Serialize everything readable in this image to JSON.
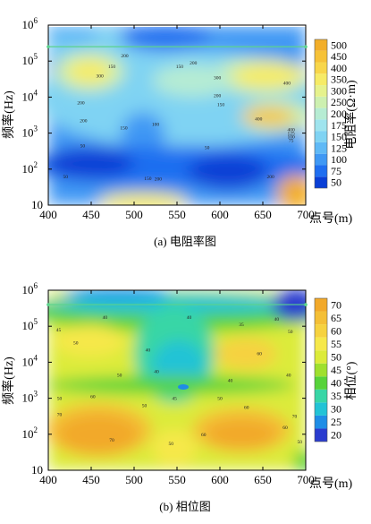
{
  "chart_data": [
    {
      "type": "heatmap",
      "caption": "(a) 电阻率图",
      "xlabel": "点号(m)",
      "ylabel": "频率(Hz)",
      "x_ticks": [
        "400",
        "450",
        "500",
        "550",
        "600",
        "650",
        "700"
      ],
      "x_range": [
        400,
        700
      ],
      "y_scale": "log",
      "y_range_log10": [
        1,
        6
      ],
      "y_ticks": [
        {
          "base": "10",
          "exp": ""
        },
        {
          "base": "10",
          "exp": "2"
        },
        {
          "base": "10",
          "exp": "3"
        },
        {
          "base": "10",
          "exp": "4"
        },
        {
          "base": "10",
          "exp": "5"
        },
        {
          "base": "10",
          "exp": "6"
        }
      ],
      "data_top_log10": 5.4,
      "colorbar_title": "电阻率(Ω·m)",
      "colorbar_levels": [
        "50",
        "75",
        "100",
        "125",
        "150",
        "175",
        "200",
        "250",
        "300",
        "350",
        "400",
        "450",
        "500"
      ],
      "colorbar_colors": [
        "#0a3fd6",
        "#1f6ef0",
        "#3f98f4",
        "#5fb9f6",
        "#7fd3f3",
        "#9fe4ee",
        "#b6ecd3",
        "#cdf0b0",
        "#e6f28c",
        "#f6eb66",
        "#f8d64a",
        "#f6c238",
        "#f2ae29"
      ],
      "contour_labels": [
        {
          "x": 489,
          "lf": 5.1,
          "text": "200"
        },
        {
          "x": 474,
          "lf": 4.8,
          "text": "150"
        },
        {
          "x": 460,
          "lf": 4.55,
          "text": "300"
        },
        {
          "x": 553,
          "lf": 4.8,
          "text": "150"
        },
        {
          "x": 569,
          "lf": 4.9,
          "text": "200"
        },
        {
          "x": 597,
          "lf": 4.5,
          "text": "300"
        },
        {
          "x": 678,
          "lf": 4.35,
          "text": "400"
        },
        {
          "x": 597,
          "lf": 4.0,
          "text": "200"
        },
        {
          "x": 438,
          "lf": 3.8,
          "text": "200"
        },
        {
          "x": 601,
          "lf": 3.75,
          "text": "150"
        },
        {
          "x": 441,
          "lf": 3.3,
          "text": "200"
        },
        {
          "x": 488,
          "lf": 3.1,
          "text": "150"
        },
        {
          "x": 525,
          "lf": 3.2,
          "text": "100"
        },
        {
          "x": 645,
          "lf": 3.35,
          "text": "400"
        },
        {
          "x": 683,
          "lf": 3.05,
          "text": "400"
        },
        {
          "x": 683,
          "lf": 2.95,
          "text": "125"
        },
        {
          "x": 683,
          "lf": 2.85,
          "text": "100"
        },
        {
          "x": 683,
          "lf": 2.75,
          "text": "75"
        },
        {
          "x": 440,
          "lf": 2.6,
          "text": "50"
        },
        {
          "x": 585,
          "lf": 2.55,
          "text": "50"
        },
        {
          "x": 420,
          "lf": 1.75,
          "text": "50"
        },
        {
          "x": 516,
          "lf": 1.7,
          "text": "150"
        },
        {
          "x": 528,
          "lf": 1.68,
          "text": "200"
        },
        {
          "x": 659,
          "lf": 1.75,
          "text": "200"
        }
      ]
    },
    {
      "type": "heatmap",
      "caption": "(b) 相位图",
      "xlabel": "点号(m)",
      "ylabel": "频率(Hz)",
      "x_ticks": [
        "400",
        "450",
        "500",
        "550",
        "600",
        "650",
        "700"
      ],
      "x_range": [
        400,
        700
      ],
      "y_scale": "log",
      "y_range_log10": [
        1,
        6
      ],
      "y_ticks": [
        {
          "base": "10",
          "exp": ""
        },
        {
          "base": "10",
          "exp": "2"
        },
        {
          "base": "10",
          "exp": "3"
        },
        {
          "base": "10",
          "exp": "4"
        },
        {
          "base": "10",
          "exp": "5"
        },
        {
          "base": "10",
          "exp": "6"
        }
      ],
      "data_top_log10": 5.6,
      "colorbar_title": "相位(°)",
      "colorbar_levels": [
        "20",
        "25",
        "30",
        "35",
        "40",
        "45",
        "50",
        "55",
        "60",
        "65",
        "70"
      ],
      "colorbar_colors": [
        "#2a3ccf",
        "#1f8de6",
        "#22c3d6",
        "#38d6a6",
        "#57d33a",
        "#9fe02e",
        "#dceb3a",
        "#f6e84a",
        "#f6d23f",
        "#f4bf36",
        "#f2a92a"
      ],
      "contour_labels": [
        {
          "x": 466,
          "lf": 5.2,
          "text": "40"
        },
        {
          "x": 564,
          "lf": 5.2,
          "text": "40"
        },
        {
          "x": 666,
          "lf": 5.15,
          "text": "40"
        },
        {
          "x": 412,
          "lf": 4.85,
          "text": "45"
        },
        {
          "x": 625,
          "lf": 5.0,
          "text": "35"
        },
        {
          "x": 682,
          "lf": 4.8,
          "text": "50"
        },
        {
          "x": 432,
          "lf": 4.5,
          "text": "50"
        },
        {
          "x": 516,
          "lf": 4.3,
          "text": "40"
        },
        {
          "x": 646,
          "lf": 4.2,
          "text": "60"
        },
        {
          "x": 483,
          "lf": 3.6,
          "text": "50"
        },
        {
          "x": 526,
          "lf": 3.7,
          "text": "40"
        },
        {
          "x": 612,
          "lf": 3.45,
          "text": "40"
        },
        {
          "x": 680,
          "lf": 3.6,
          "text": "40"
        },
        {
          "x": 413,
          "lf": 2.95,
          "text": "50"
        },
        {
          "x": 452,
          "lf": 3.0,
          "text": "60"
        },
        {
          "x": 547,
          "lf": 2.95,
          "text": "45"
        },
        {
          "x": 600,
          "lf": 2.95,
          "text": "50"
        },
        {
          "x": 413,
          "lf": 2.5,
          "text": "70"
        },
        {
          "x": 512,
          "lf": 2.75,
          "text": "50"
        },
        {
          "x": 631,
          "lf": 2.7,
          "text": "60"
        },
        {
          "x": 687,
          "lf": 2.45,
          "text": "70"
        },
        {
          "x": 676,
          "lf": 2.15,
          "text": "60"
        },
        {
          "x": 581,
          "lf": 1.95,
          "text": "60"
        },
        {
          "x": 474,
          "lf": 1.8,
          "text": "70"
        },
        {
          "x": 543,
          "lf": 1.7,
          "text": "50"
        },
        {
          "x": 693,
          "lf": 1.75,
          "text": "50"
        }
      ]
    }
  ]
}
